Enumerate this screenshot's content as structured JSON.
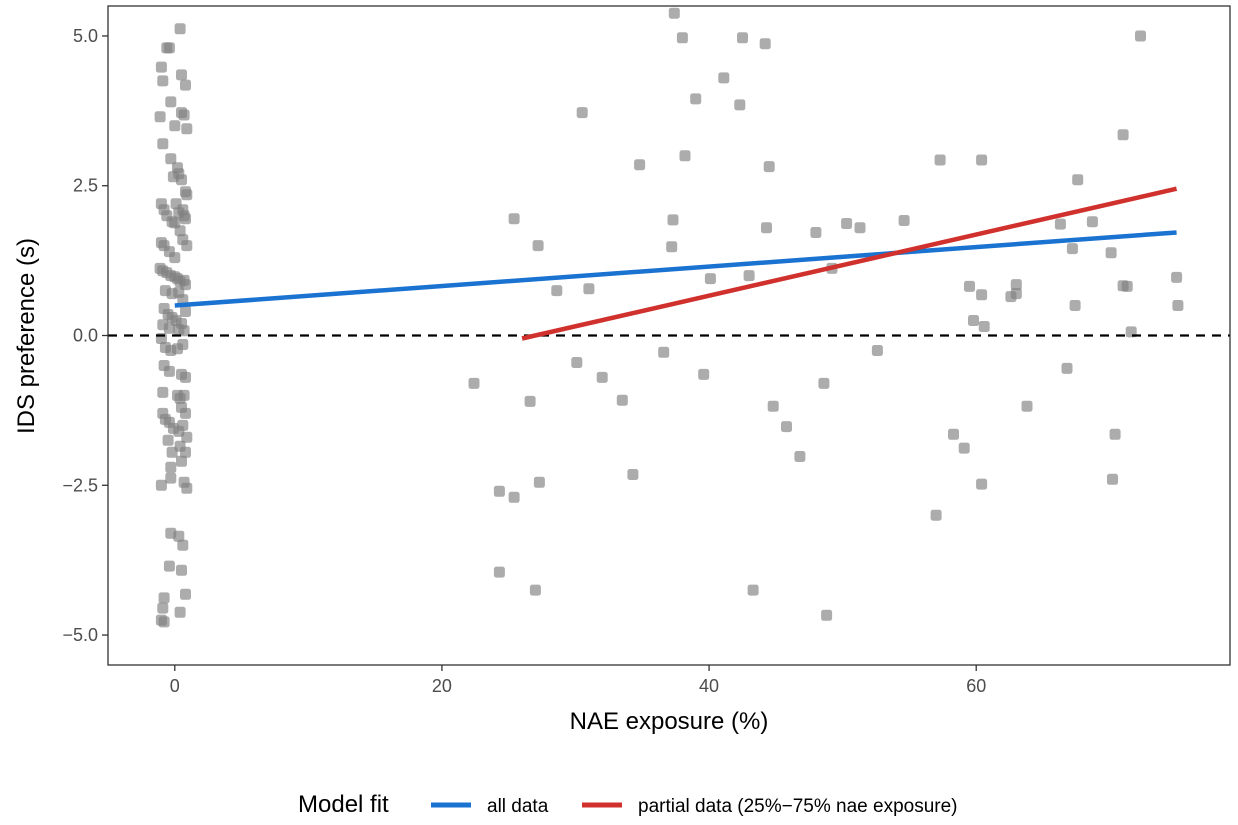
{
  "chart_data": {
    "type": "scatter",
    "xlabel": "NAE exposure (%)",
    "ylabel": "IDS preference (s)",
    "xlim": [
      -5,
      79
    ],
    "ylim": [
      -5.5,
      5.5
    ],
    "x_ticks": [
      0,
      20,
      40,
      60
    ],
    "x_tick_labels": [
      "0",
      "20",
      "40",
      "60"
    ],
    "y_ticks": [
      -5,
      -2.5,
      0,
      2.5,
      5
    ],
    "y_tick_labels": [
      "−5.0",
      "−2.5",
      "0.0",
      "2.5",
      "5.0"
    ],
    "grid": false,
    "reference_line": {
      "y": 0,
      "style": "dashed",
      "color": "#000000"
    },
    "legend": {
      "title": "Model fit",
      "placement": "bottom",
      "entries": [
        {
          "label": "all data",
          "color": "#1a73d1"
        },
        {
          "label": "partial data (25%−75% nae exposure)",
          "color": "#d0312d"
        }
      ]
    },
    "points_color": "#808080",
    "fit_lines": [
      {
        "color": "#1a73d1",
        "x": [
          0,
          75
        ],
        "y": [
          0.5,
          1.72
        ]
      },
      {
        "color": "#d0312d",
        "x": [
          26,
          75
        ],
        "y": [
          -0.05,
          2.45
        ]
      }
    ],
    "points": [
      [
        -0.6,
        4.8
      ],
      [
        -0.4,
        4.8
      ],
      [
        0.4,
        5.12
      ],
      [
        -1.0,
        4.48
      ],
      [
        -0.9,
        4.25
      ],
      [
        0.5,
        4.35
      ],
      [
        0.8,
        4.18
      ],
      [
        -1.1,
        3.65
      ],
      [
        0.5,
        3.72
      ],
      [
        0.7,
        3.68
      ],
      [
        -0.3,
        3.9
      ],
      [
        0.0,
        3.5
      ],
      [
        0.9,
        3.45
      ],
      [
        -0.9,
        3.2
      ],
      [
        -0.3,
        2.95
      ],
      [
        0.2,
        2.8
      ],
      [
        0.3,
        2.7
      ],
      [
        0.5,
        2.6
      ],
      [
        -0.1,
        2.65
      ],
      [
        0.8,
        2.4
      ],
      [
        0.9,
        2.35
      ],
      [
        -1.0,
        2.2
      ],
      [
        -0.8,
        2.1
      ],
      [
        -0.6,
        2.0
      ],
      [
        -0.2,
        1.9
      ],
      [
        0.0,
        1.88
      ],
      [
        0.6,
        2.1
      ],
      [
        0.7,
        2.0
      ],
      [
        0.8,
        1.95
      ],
      [
        0.1,
        2.2
      ],
      [
        0.3,
        2.05
      ],
      [
        0.4,
        1.75
      ],
      [
        0.6,
        1.6
      ],
      [
        0.9,
        1.5
      ],
      [
        -1.0,
        1.55
      ],
      [
        -0.8,
        1.5
      ],
      [
        -0.4,
        1.4
      ],
      [
        0.0,
        1.3
      ],
      [
        -1.1,
        1.12
      ],
      [
        -0.9,
        1.08
      ],
      [
        -0.6,
        1.05
      ],
      [
        -0.3,
        1.0
      ],
      [
        0.0,
        0.98
      ],
      [
        0.2,
        0.95
      ],
      [
        0.4,
        0.9
      ],
      [
        0.7,
        0.92
      ],
      [
        0.8,
        0.85
      ],
      [
        -0.7,
        0.75
      ],
      [
        -0.2,
        0.7
      ],
      [
        0.3,
        0.72
      ],
      [
        0.6,
        0.6
      ],
      [
        -0.8,
        0.45
      ],
      [
        0.8,
        0.4
      ],
      [
        -0.5,
        0.35
      ],
      [
        -0.2,
        0.3
      ],
      [
        0.1,
        0.25
      ],
      [
        0.5,
        0.2
      ],
      [
        -0.9,
        0.18
      ],
      [
        -0.4,
        0.12
      ],
      [
        0.3,
        0.1
      ],
      [
        0.7,
        0.08
      ],
      [
        -1.0,
        -0.05
      ],
      [
        -0.7,
        -0.2
      ],
      [
        -0.3,
        -0.25
      ],
      [
        0.2,
        -0.22
      ],
      [
        0.6,
        -0.15
      ],
      [
        -0.8,
        -0.5
      ],
      [
        -0.4,
        -0.6
      ],
      [
        0.5,
        -0.65
      ],
      [
        0.8,
        -0.7
      ],
      [
        -0.9,
        -0.95
      ],
      [
        0.2,
        -1.0
      ],
      [
        0.4,
        -1.05
      ],
      [
        0.7,
        -1.0
      ],
      [
        0.5,
        -1.2
      ],
      [
        0.8,
        -1.3
      ],
      [
        -0.9,
        -1.3
      ],
      [
        -0.7,
        -1.4
      ],
      [
        -0.4,
        -1.45
      ],
      [
        -0.1,
        -1.55
      ],
      [
        0.3,
        -1.6
      ],
      [
        0.6,
        -1.5
      ],
      [
        0.9,
        -1.7
      ],
      [
        -0.5,
        -1.75
      ],
      [
        -0.2,
        -1.95
      ],
      [
        0.4,
        -1.85
      ],
      [
        0.8,
        -1.95
      ],
      [
        -0.3,
        -2.2
      ],
      [
        0.5,
        -2.1
      ],
      [
        -1.0,
        -2.5
      ],
      [
        -0.3,
        -2.38
      ],
      [
        0.7,
        -2.45
      ],
      [
        0.9,
        -2.55
      ],
      [
        -0.3,
        -3.3
      ],
      [
        0.3,
        -3.35
      ],
      [
        0.6,
        -3.5
      ],
      [
        -0.4,
        -3.85
      ],
      [
        0.5,
        -3.92
      ],
      [
        0.8,
        -4.32
      ],
      [
        -0.8,
        -4.38
      ],
      [
        -0.9,
        -4.55
      ],
      [
        0.4,
        -4.62
      ],
      [
        -1.0,
        -4.75
      ],
      [
        -0.8,
        -4.78
      ],
      [
        22.4,
        -0.8
      ],
      [
        24.3,
        -2.6
      ],
      [
        24.3,
        -3.95
      ],
      [
        25.4,
        -2.7
      ],
      [
        25.4,
        1.95
      ],
      [
        26.6,
        -1.1
      ],
      [
        27.0,
        -4.25
      ],
      [
        27.2,
        1.5
      ],
      [
        27.3,
        -2.45
      ],
      [
        28.6,
        0.75
      ],
      [
        30.1,
        -0.45
      ],
      [
        30.5,
        3.72
      ],
      [
        31.0,
        0.78
      ],
      [
        32.0,
        -0.7
      ],
      [
        33.5,
        -1.08
      ],
      [
        34.3,
        -2.32
      ],
      [
        34.8,
        2.85
      ],
      [
        36.6,
        -0.28
      ],
      [
        37.2,
        1.48
      ],
      [
        37.3,
        1.93
      ],
      [
        37.4,
        5.38
      ],
      [
        38.0,
        4.97
      ],
      [
        38.2,
        3.0
      ],
      [
        39.0,
        3.95
      ],
      [
        39.6,
        -0.65
      ],
      [
        40.1,
        0.95
      ],
      [
        41.1,
        4.3
      ],
      [
        42.3,
        3.85
      ],
      [
        42.5,
        4.97
      ],
      [
        43.0,
        1.0
      ],
      [
        43.3,
        -4.25
      ],
      [
        44.2,
        4.87
      ],
      [
        44.3,
        1.8
      ],
      [
        44.5,
        2.82
      ],
      [
        44.8,
        -1.18
      ],
      [
        45.8,
        -1.52
      ],
      [
        46.8,
        -2.02
      ],
      [
        48.0,
        1.72
      ],
      [
        48.6,
        -0.8
      ],
      [
        48.8,
        -4.67
      ],
      [
        49.2,
        1.12
      ],
      [
        50.3,
        1.87
      ],
      [
        51.3,
        1.8
      ],
      [
        52.6,
        -0.25
      ],
      [
        54.6,
        1.92
      ],
      [
        57.0,
        -3.0
      ],
      [
        57.3,
        2.93
      ],
      [
        58.3,
        -1.65
      ],
      [
        59.1,
        -1.88
      ],
      [
        59.5,
        0.82
      ],
      [
        59.8,
        0.25
      ],
      [
        60.4,
        2.93
      ],
      [
        60.4,
        0.68
      ],
      [
        60.4,
        -2.48
      ],
      [
        60.6,
        0.15
      ],
      [
        62.6,
        0.65
      ],
      [
        63.0,
        0.85
      ],
      [
        63.0,
        0.7
      ],
      [
        63.8,
        -1.18
      ],
      [
        66.3,
        1.86
      ],
      [
        66.8,
        -0.55
      ],
      [
        67.2,
        1.45
      ],
      [
        67.4,
        0.5
      ],
      [
        67.6,
        2.6
      ],
      [
        68.7,
        1.9
      ],
      [
        70.1,
        1.38
      ],
      [
        70.2,
        -2.4
      ],
      [
        70.4,
        -1.65
      ],
      [
        71.0,
        3.35
      ],
      [
        71.0,
        0.83
      ],
      [
        71.3,
        0.82
      ],
      [
        71.6,
        0.06
      ],
      [
        72.3,
        5.0
      ],
      [
        75.0,
        0.97
      ],
      [
        75.1,
        0.5
      ]
    ]
  }
}
